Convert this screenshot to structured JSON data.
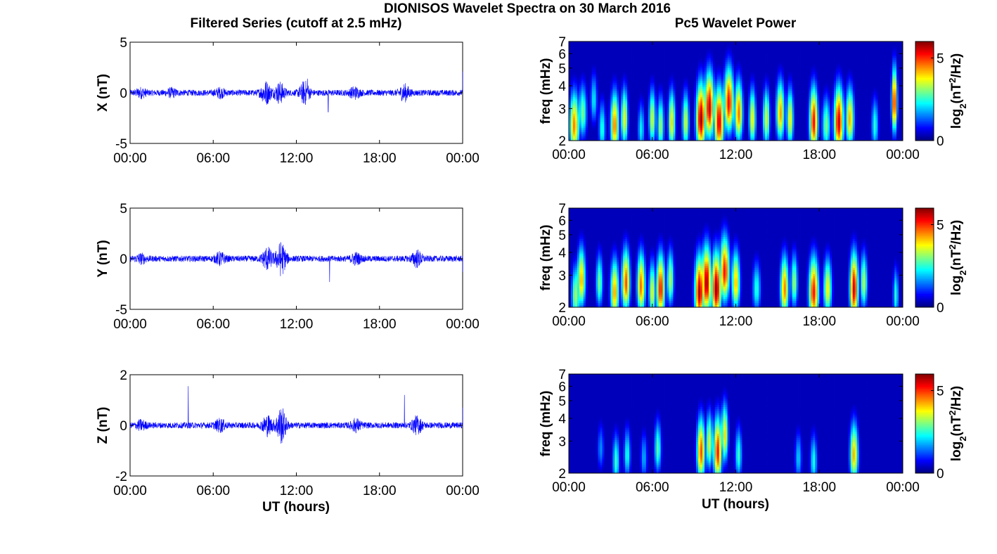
{
  "figure": {
    "title": "DIONISOS Wavelet Spectra on 30 March 2016",
    "left_column_title": "Filtered Series (cutoff at 2.5 mHz)",
    "right_column_title": "Pc5 Wavelet Power",
    "x_axis_label": "UT (hours)",
    "trace_color": "#0000ff"
  },
  "chart_data": [
    {
      "type": "line",
      "component": "X",
      "ylabel": "X (nT)",
      "xlim": [
        "00:00",
        "24:00"
      ],
      "ylim": [
        -5,
        5
      ],
      "xticks": [
        "00:00",
        "06:00",
        "12:00",
        "18:00",
        "00:00"
      ],
      "yticks": [
        "5",
        "0",
        "-5"
      ],
      "baseline_noise_nT": 0.3,
      "bursts": [
        {
          "t_hours": 0.8,
          "amp_nT": 0.35
        },
        {
          "t_hours": 3.0,
          "amp_nT": 0.3
        },
        {
          "t_hours": 6.5,
          "amp_nT": 0.35
        },
        {
          "t_hours": 9.8,
          "amp_nT": 1.0
        },
        {
          "t_hours": 10.8,
          "amp_nT": 0.9
        },
        {
          "t_hours": 12.6,
          "amp_nT": 1.0
        },
        {
          "t_hours": 16.2,
          "amp_nT": 0.45
        },
        {
          "t_hours": 19.8,
          "amp_nT": 0.7
        }
      ],
      "spikes": [
        {
          "t_hours": 12.8,
          "value_nT": 1.4
        },
        {
          "t_hours": 14.3,
          "value_nT": -1.9
        },
        {
          "t_hours": 24.0,
          "value_nT": 2.1
        }
      ]
    },
    {
      "type": "line",
      "component": "Y",
      "ylabel": "Y (nT)",
      "xlim": [
        "00:00",
        "24:00"
      ],
      "ylim": [
        -5,
        5
      ],
      "xticks": [
        "00:00",
        "06:00",
        "12:00",
        "18:00",
        "00:00"
      ],
      "yticks": [
        "5",
        "0",
        "-5"
      ],
      "baseline_noise_nT": 0.3,
      "bursts": [
        {
          "t_hours": 0.8,
          "amp_nT": 0.35
        },
        {
          "t_hours": 6.5,
          "amp_nT": 0.5
        },
        {
          "t_hours": 9.9,
          "amp_nT": 1.0
        },
        {
          "t_hours": 10.9,
          "amp_nT": 1.5
        },
        {
          "t_hours": 16.3,
          "amp_nT": 0.45
        },
        {
          "t_hours": 20.7,
          "amp_nT": 0.7
        }
      ],
      "spikes": [
        {
          "t_hours": 14.4,
          "value_nT": -2.3
        },
        {
          "t_hours": 24.0,
          "value_nT": -1.3
        }
      ]
    },
    {
      "type": "line",
      "component": "Z",
      "ylabel": "Z (nT)",
      "xlim": [
        "00:00",
        "24:00"
      ],
      "ylim": [
        -2,
        2
      ],
      "xticks": [
        "00:00",
        "06:00",
        "12:00",
        "18:00",
        "00:00"
      ],
      "yticks": [
        "2",
        "0",
        "-2"
      ],
      "baseline_noise_nT": 0.12,
      "bursts": [
        {
          "t_hours": 0.8,
          "amp_nT": 0.15
        },
        {
          "t_hours": 6.5,
          "amp_nT": 0.2
        },
        {
          "t_hours": 9.9,
          "amp_nT": 0.35
        },
        {
          "t_hours": 10.9,
          "amp_nT": 0.65
        },
        {
          "t_hours": 16.3,
          "amp_nT": 0.2
        },
        {
          "t_hours": 20.7,
          "amp_nT": 0.3
        }
      ],
      "spikes": [
        {
          "t_hours": 4.2,
          "value_nT": 1.55
        },
        {
          "t_hours": 19.8,
          "value_nT": 1.2
        },
        {
          "t_hours": 24.0,
          "value_nT": 0.7
        }
      ]
    },
    {
      "type": "heatmap",
      "component": "X",
      "ylabel": "freq (mHz)",
      "yscale": "log",
      "ylim": [
        2,
        7
      ],
      "yticks": [
        "2",
        "3",
        "4",
        "5",
        "6",
        "7"
      ],
      "xticks": [
        "00:00",
        "06:00",
        "12:00",
        "18:00",
        "00:00"
      ],
      "colorbar_label": "log2(nT^2/Hz)",
      "colorbar_ticks": [
        "0",
        "5"
      ],
      "clim": [
        0,
        6
      ],
      "blobs": [
        {
          "t": 0.4,
          "f": 2.4,
          "p": 4.5,
          "w": 0.35
        },
        {
          "t": 1.0,
          "f": 2.8,
          "p": 3.0,
          "w": 0.3
        },
        {
          "t": 1.8,
          "f": 3.3,
          "p": 2.2,
          "w": 0.25
        },
        {
          "t": 2.4,
          "f": 2.3,
          "p": 2.5,
          "w": 0.25
        },
        {
          "t": 3.3,
          "f": 2.4,
          "p": 4.6,
          "w": 0.3
        },
        {
          "t": 4.0,
          "f": 2.6,
          "p": 3.8,
          "w": 0.25
        },
        {
          "t": 5.2,
          "f": 2.3,
          "p": 2.2,
          "w": 0.25
        },
        {
          "t": 6.0,
          "f": 2.6,
          "p": 3.5,
          "w": 0.25
        },
        {
          "t": 6.6,
          "f": 2.4,
          "p": 3.2,
          "w": 0.25
        },
        {
          "t": 7.4,
          "f": 2.5,
          "p": 4.0,
          "w": 0.25
        },
        {
          "t": 8.4,
          "f": 2.5,
          "p": 3.5,
          "w": 0.25
        },
        {
          "t": 9.5,
          "f": 2.6,
          "p": 5.8,
          "w": 0.35
        },
        {
          "t": 10.1,
          "f": 3.0,
          "p": 5.6,
          "w": 0.35
        },
        {
          "t": 10.8,
          "f": 2.5,
          "p": 5.5,
          "w": 0.35
        },
        {
          "t": 11.5,
          "f": 3.2,
          "p": 5.3,
          "w": 0.35
        },
        {
          "t": 12.2,
          "f": 2.8,
          "p": 4.6,
          "w": 0.3
        },
        {
          "t": 13.2,
          "f": 2.6,
          "p": 3.8,
          "w": 0.25
        },
        {
          "t": 14.2,
          "f": 2.6,
          "p": 3.6,
          "w": 0.25
        },
        {
          "t": 15.2,
          "f": 2.8,
          "p": 4.3,
          "w": 0.3
        },
        {
          "t": 15.9,
          "f": 2.6,
          "p": 3.8,
          "w": 0.25
        },
        {
          "t": 17.6,
          "f": 2.5,
          "p": 5.3,
          "w": 0.3
        },
        {
          "t": 18.5,
          "f": 2.4,
          "p": 3.0,
          "w": 0.3
        },
        {
          "t": 19.4,
          "f": 2.5,
          "p": 5.5,
          "w": 0.35
        },
        {
          "t": 20.2,
          "f": 2.6,
          "p": 4.2,
          "w": 0.3
        },
        {
          "t": 22.0,
          "f": 2.4,
          "p": 2.5,
          "w": 0.25
        },
        {
          "t": 23.4,
          "f": 3.2,
          "p": 5.3,
          "w": 0.2
        }
      ]
    },
    {
      "type": "heatmap",
      "component": "Y",
      "ylabel": "freq (mHz)",
      "yscale": "log",
      "ylim": [
        2,
        7
      ],
      "yticks": [
        "2",
        "3",
        "4",
        "5",
        "6",
        "7"
      ],
      "xticks": [
        "00:00",
        "06:00",
        "12:00",
        "18:00",
        "00:00"
      ],
      "colorbar_label": "log2(nT^2/Hz)",
      "colorbar_ticks": [
        "0",
        "5"
      ],
      "clim": [
        0,
        6
      ],
      "blobs": [
        {
          "t": 0.5,
          "f": 2.3,
          "p": 3.3,
          "w": 0.3
        },
        {
          "t": 0.9,
          "f": 2.8,
          "p": 4.3,
          "w": 0.3
        },
        {
          "t": 2.2,
          "f": 2.7,
          "p": 3.0,
          "w": 0.25
        },
        {
          "t": 3.3,
          "f": 2.4,
          "p": 4.4,
          "w": 0.3
        },
        {
          "t": 4.1,
          "f": 2.7,
          "p": 4.8,
          "w": 0.3
        },
        {
          "t": 5.2,
          "f": 2.6,
          "p": 4.6,
          "w": 0.3
        },
        {
          "t": 6.0,
          "f": 2.4,
          "p": 3.6,
          "w": 0.25
        },
        {
          "t": 6.6,
          "f": 2.5,
          "p": 5.2,
          "w": 0.3
        },
        {
          "t": 7.3,
          "f": 2.8,
          "p": 3.4,
          "w": 0.25
        },
        {
          "t": 9.4,
          "f": 2.4,
          "p": 5.7,
          "w": 0.35
        },
        {
          "t": 9.9,
          "f": 2.7,
          "p": 5.8,
          "w": 0.35
        },
        {
          "t": 10.6,
          "f": 2.5,
          "p": 5.9,
          "w": 0.35
        },
        {
          "t": 11.2,
          "f": 3.1,
          "p": 5.2,
          "w": 0.35
        },
        {
          "t": 12.0,
          "f": 2.7,
          "p": 4.2,
          "w": 0.3
        },
        {
          "t": 13.5,
          "f": 2.5,
          "p": 2.5,
          "w": 0.3
        },
        {
          "t": 15.5,
          "f": 2.5,
          "p": 4.5,
          "w": 0.3
        },
        {
          "t": 16.2,
          "f": 2.7,
          "p": 3.2,
          "w": 0.25
        },
        {
          "t": 17.6,
          "f": 2.4,
          "p": 5.2,
          "w": 0.35
        },
        {
          "t": 18.6,
          "f": 2.5,
          "p": 3.8,
          "w": 0.3
        },
        {
          "t": 20.5,
          "f": 2.5,
          "p": 5.6,
          "w": 0.3
        },
        {
          "t": 21.2,
          "f": 2.7,
          "p": 3.4,
          "w": 0.25
        },
        {
          "t": 23.5,
          "f": 2.3,
          "p": 2.5,
          "w": 0.2
        }
      ]
    },
    {
      "type": "heatmap",
      "component": "Z",
      "ylabel": "freq (mHz)",
      "yscale": "log",
      "ylim": [
        2,
        7
      ],
      "yticks": [
        "2",
        "3",
        "4",
        "5",
        "6",
        "7"
      ],
      "xticks": [
        "00:00",
        "06:00",
        "12:00",
        "18:00",
        "00:00"
      ],
      "colorbar_label": "log2(nT^2/Hz)",
      "colorbar_ticks": [
        "0",
        "5"
      ],
      "clim": [
        0,
        6
      ],
      "blobs": [
        {
          "t": 2.3,
          "f": 2.7,
          "p": 1.6,
          "w": 0.25
        },
        {
          "t": 3.4,
          "f": 2.3,
          "p": 2.6,
          "w": 0.25
        },
        {
          "t": 4.2,
          "f": 2.5,
          "p": 2.4,
          "w": 0.25
        },
        {
          "t": 5.4,
          "f": 2.4,
          "p": 1.8,
          "w": 0.25
        },
        {
          "t": 6.4,
          "f": 2.7,
          "p": 2.8,
          "w": 0.25
        },
        {
          "t": 9.5,
          "f": 2.6,
          "p": 4.8,
          "w": 0.3
        },
        {
          "t": 10.1,
          "f": 2.9,
          "p": 3.6,
          "w": 0.25
        },
        {
          "t": 10.7,
          "f": 2.6,
          "p": 5.2,
          "w": 0.3
        },
        {
          "t": 11.2,
          "f": 3.2,
          "p": 4.0,
          "w": 0.25
        },
        {
          "t": 12.2,
          "f": 2.5,
          "p": 2.6,
          "w": 0.25
        },
        {
          "t": 16.5,
          "f": 2.4,
          "p": 2.0,
          "w": 0.25
        },
        {
          "t": 17.6,
          "f": 2.3,
          "p": 2.4,
          "w": 0.25
        },
        {
          "t": 20.5,
          "f": 2.5,
          "p": 4.2,
          "w": 0.3
        }
      ]
    }
  ]
}
